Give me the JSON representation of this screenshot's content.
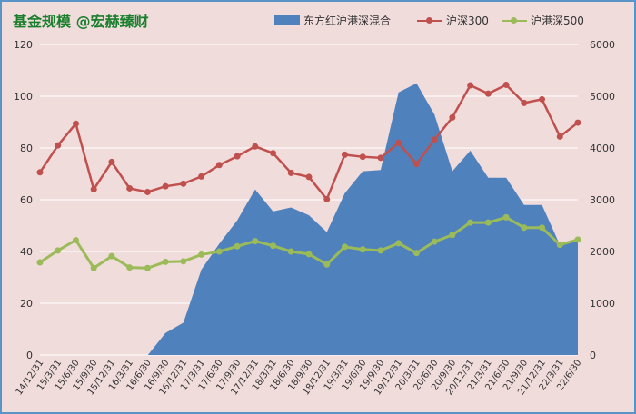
{
  "title": "基金规模 @宏赫臻财",
  "colors": {
    "area": "#4f81bd",
    "line300": "#c0504d",
    "line500": "#9bbb59",
    "grid": "#ffffff"
  },
  "chart_data": {
    "type": "area+line",
    "title": "",
    "categories": [
      "14/12/31",
      "15/3/31",
      "15/6/30",
      "15/9/30",
      "15/12/31",
      "16/3/31",
      "16/6/30",
      "16/9/30",
      "16/12/31",
      "17/3/31",
      "17/6/30",
      "17/9/30",
      "17/12/31",
      "18/3/31",
      "18/6/30",
      "18/9/30",
      "18/12/31",
      "19/3/31",
      "19/6/30",
      "19/9/30",
      "19/12/31",
      "20/3/31",
      "20/6/30",
      "20/9/30",
      "20/12/31",
      "21/3/31",
      "21/6/30",
      "21/9/30",
      "21/12/31",
      "22/3/31",
      "22/6/30"
    ],
    "y_left": {
      "min": 0,
      "max": 120,
      "ticks": [
        0,
        20,
        40,
        60,
        80,
        100,
        120
      ]
    },
    "y_right": {
      "min": 0,
      "max": 6000,
      "ticks": [
        0,
        1000,
        2000,
        3000,
        4000,
        5000,
        6000
      ]
    },
    "grid": true,
    "legend_position": "top-right",
    "series": [
      {
        "name": "东方红沪港深混合",
        "type": "area",
        "axis": "left",
        "values": [
          null,
          null,
          null,
          null,
          null,
          null,
          null,
          8.5,
          12.5,
          33,
          43,
          52,
          64,
          55.5,
          57,
          54,
          47.5,
          62.5,
          71,
          71.5,
          101.5,
          105,
          93,
          71,
          79,
          68.5,
          68.5,
          58,
          58,
          42.5,
          45
        ]
      },
      {
        "name": "沪深300",
        "type": "line",
        "axis": "right",
        "values": [
          3530,
          4050,
          4470,
          3200,
          3730,
          3220,
          3150,
          3260,
          3310,
          3450,
          3670,
          3840,
          4030,
          3900,
          3520,
          3440,
          3010,
          3870,
          3830,
          3810,
          4100,
          3690,
          4160,
          4590,
          5210,
          5050,
          5220,
          4870,
          4940,
          4220,
          4490
        ]
      },
      {
        "name": "沪港深500",
        "type": "line",
        "axis": "right",
        "values": [
          1790,
          2020,
          2220,
          1680,
          1910,
          1690,
          1680,
          1800,
          1810,
          1940,
          2000,
          2100,
          2200,
          2110,
          2000,
          1950,
          1750,
          2090,
          2040,
          2020,
          2160,
          1970,
          2190,
          2320,
          2560,
          2560,
          2660,
          2460,
          2460,
          2130,
          2230
        ]
      }
    ]
  }
}
